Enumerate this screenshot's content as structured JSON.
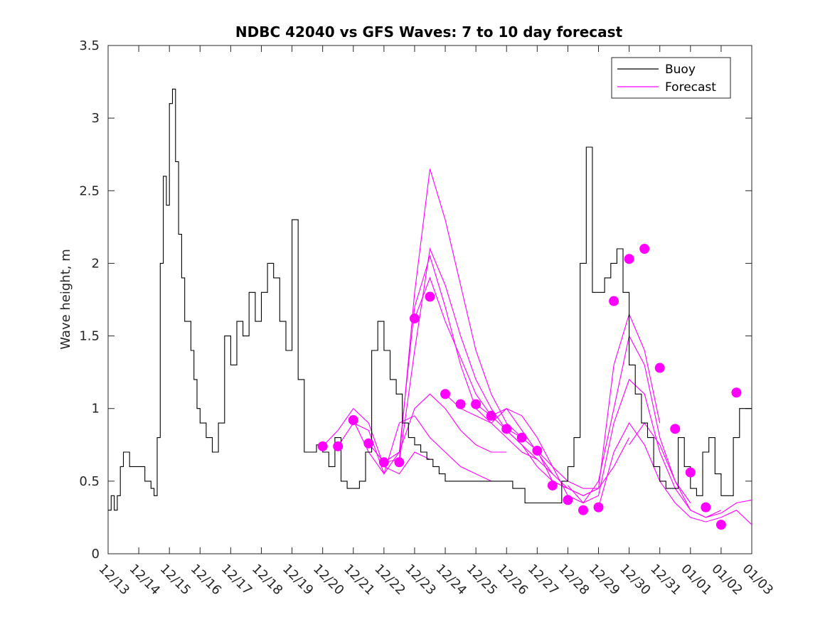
{
  "chart_data": {
    "type": "line",
    "title": "NDBC 42040 vs GFS Waves: 7 to 10 day forecast",
    "xlabel": "",
    "ylabel": "Wave height, m",
    "xlim": [
      0,
      21
    ],
    "ylim": [
      0,
      3.5
    ],
    "yticks": [
      0,
      0.5,
      1,
      1.5,
      2,
      2.5,
      3,
      3.5
    ],
    "ytick_labels": [
      "0",
      "0.5",
      "1",
      "1.5",
      "2",
      "2.5",
      "3",
      "3.5"
    ],
    "xtick_labels": [
      "12/13",
      "12/14",
      "12/15",
      "12/16",
      "12/17",
      "12/18",
      "12/19",
      "12/20",
      "12/21",
      "12/22",
      "12/23",
      "12/24",
      "12/25",
      "12/26",
      "12/27",
      "12/28",
      "12/29",
      "12/30",
      "12/31",
      "01/01",
      "01/02",
      "01/03"
    ],
    "colors": {
      "buoy": "#000000",
      "forecast": "#ff00ff"
    },
    "legend": {
      "position": "top-right",
      "entries": [
        {
          "label": "Buoy",
          "color": "#000000"
        },
        {
          "label": "Forecast",
          "color": "#ff00ff"
        }
      ]
    },
    "buoy": {
      "name": "Buoy",
      "x": [
        0,
        0.1,
        0.2,
        0.3,
        0.4,
        0.5,
        0.6,
        0.7,
        0.8,
        0.9,
        1.0,
        1.2,
        1.4,
        1.5,
        1.6,
        1.7,
        1.8,
        1.9,
        2.0,
        2.1,
        2.2,
        2.3,
        2.4,
        2.5,
        2.6,
        2.7,
        2.8,
        2.9,
        3.0,
        3.2,
        3.4,
        3.6,
        3.8,
        4.0,
        4.2,
        4.4,
        4.6,
        4.8,
        5.0,
        5.2,
        5.4,
        5.6,
        5.8,
        6.0,
        6.2,
        6.4,
        6.6,
        6.8,
        7.0,
        7.2,
        7.4,
        7.6,
        7.8,
        8.0,
        8.2,
        8.4,
        8.6,
        8.8,
        9.0,
        9.2,
        9.4,
        9.6,
        9.8,
        10.0,
        10.2,
        10.4,
        10.6,
        10.8,
        11.0,
        11.2,
        11.4,
        11.6,
        11.8,
        12.0,
        12.4,
        12.8,
        13.2,
        13.6,
        14.0,
        14.4,
        14.8,
        15.0,
        15.2,
        15.4,
        15.6,
        15.8,
        16.0,
        16.2,
        16.4,
        16.6,
        16.8,
        17.0,
        17.2,
        17.4,
        17.6,
        17.8,
        18.0,
        18.2,
        18.4,
        18.6,
        18.8,
        19.0,
        19.2,
        19.4,
        19.6,
        19.8,
        20.0,
        20.2,
        20.4,
        20.6,
        20.8,
        21.0
      ],
      "y": [
        0.3,
        0.4,
        0.3,
        0.4,
        0.6,
        0.7,
        0.7,
        0.6,
        0.6,
        0.6,
        0.6,
        0.5,
        0.45,
        0.4,
        0.8,
        2.0,
        2.6,
        2.4,
        3.1,
        3.2,
        2.7,
        2.2,
        1.9,
        1.6,
        1.6,
        1.4,
        1.2,
        1.0,
        0.9,
        0.8,
        0.7,
        0.9,
        1.5,
        1.3,
        1.6,
        1.5,
        1.8,
        1.6,
        1.8,
        2.0,
        1.9,
        1.6,
        1.4,
        2.3,
        1.2,
        0.7,
        0.7,
        0.75,
        0.7,
        0.6,
        0.8,
        0.5,
        0.45,
        0.45,
        0.5,
        0.7,
        1.4,
        1.6,
        1.4,
        1.2,
        1.1,
        0.9,
        0.8,
        0.75,
        0.7,
        0.65,
        0.6,
        0.55,
        0.5,
        0.5,
        0.5,
        0.5,
        0.5,
        0.5,
        0.5,
        0.5,
        0.45,
        0.35,
        0.35,
        0.35,
        0.5,
        0.6,
        0.8,
        2.0,
        2.8,
        1.8,
        1.8,
        1.9,
        2.0,
        2.1,
        1.8,
        1.3,
        1.1,
        0.9,
        0.8,
        0.6,
        0.5,
        0.45,
        0.45,
        0.8,
        0.6,
        0.45,
        0.4,
        0.7,
        0.8,
        0.55,
        0.4,
        0.4,
        0.8,
        1.0,
        1.0,
        1.0
      ]
    },
    "forecast_markers": {
      "name": "Forecast",
      "x": [
        7.0,
        7.5,
        8.0,
        8.5,
        9.0,
        9.5,
        10.0,
        10.5,
        11.0,
        11.5,
        12.0,
        12.5,
        13.0,
        13.5,
        14.0,
        14.5,
        15.0,
        15.5,
        16.0,
        16.5,
        17.0,
        17.5,
        18.0,
        18.5,
        19.0,
        19.5,
        20.0,
        20.5
      ],
      "y": [
        0.74,
        0.74,
        0.92,
        0.76,
        0.63,
        0.63,
        1.62,
        1.77,
        1.1,
        1.03,
        1.03,
        0.95,
        0.86,
        0.8,
        0.71,
        0.47,
        0.37,
        0.3,
        0.32,
        1.74,
        2.03,
        2.1,
        1.28,
        0.86,
        0.56,
        0.32,
        0.2,
        1.11
      ]
    },
    "forecast_series": [
      {
        "name": "Forecast 1",
        "x": [
          7.0,
          7.5,
          8.0,
          8.5,
          9.0,
          9.5,
          10.0,
          10.5
        ],
        "y": [
          0.74,
          0.85,
          1.0,
          0.9,
          0.6,
          0.55,
          0.7,
          0.65
        ]
      },
      {
        "name": "Forecast 2",
        "x": [
          7.5,
          8.0,
          8.5,
          9.0,
          9.5,
          10.0,
          10.5,
          11.0,
          11.5,
          12.0,
          12.5
        ],
        "y": [
          0.74,
          0.9,
          0.85,
          0.55,
          0.9,
          0.95,
          0.8,
          0.7,
          0.6,
          0.55,
          0.5
        ]
      },
      {
        "name": "Forecast 3",
        "x": [
          8.0,
          8.5,
          9.0,
          9.5,
          10.0,
          10.5,
          11.0,
          11.5,
          12.0,
          12.5,
          13.0
        ],
        "y": [
          0.92,
          0.7,
          0.55,
          0.7,
          1.0,
          1.1,
          1.0,
          0.85,
          0.75,
          0.7,
          0.7
        ]
      },
      {
        "name": "Forecast 4",
        "x": [
          8.5,
          9.0,
          9.5,
          10.0,
          10.5,
          11.0,
          11.5,
          12.0,
          12.5,
          13.0,
          13.5
        ],
        "y": [
          0.76,
          0.63,
          0.65,
          1.8,
          2.65,
          2.3,
          1.85,
          1.4,
          1.1,
          0.9,
          0.8
        ]
      },
      {
        "name": "Forecast 5",
        "x": [
          9.0,
          9.5,
          10.0,
          10.5,
          11.0,
          11.5,
          12.0,
          12.5,
          13.0,
          13.5,
          14.0
        ],
        "y": [
          0.63,
          0.7,
          1.7,
          2.05,
          1.7,
          1.3,
          1.0,
          0.9,
          0.8,
          0.7,
          0.65
        ]
      },
      {
        "name": "Forecast 6",
        "x": [
          9.5,
          10.0,
          10.5,
          11.0,
          11.5,
          12.0,
          12.5,
          13.0,
          13.5,
          14.0,
          14.5
        ],
        "y": [
          0.63,
          1.4,
          2.1,
          1.85,
          1.5,
          1.2,
          1.0,
          0.85,
          0.75,
          0.65,
          0.55
        ]
      },
      {
        "name": "Forecast 7",
        "x": [
          10.0,
          10.5,
          11.0,
          11.5,
          12.0,
          12.5,
          13.0,
          13.5,
          14.0,
          14.5,
          15.0
        ],
        "y": [
          1.62,
          1.9,
          1.6,
          1.35,
          1.1,
          0.95,
          0.85,
          0.75,
          0.6,
          0.5,
          0.45
        ]
      },
      {
        "name": "Forecast 8",
        "x": [
          11.0,
          11.5,
          12.0,
          12.5,
          13.0,
          13.5,
          14.0,
          14.5,
          15.0,
          15.5,
          16.0
        ],
        "y": [
          1.1,
          1.0,
          0.95,
          0.9,
          1.0,
          0.85,
          0.7,
          0.55,
          0.45,
          0.4,
          0.45
        ]
      },
      {
        "name": "Forecast 9",
        "x": [
          12.0,
          12.5,
          13.0,
          13.5,
          14.0,
          14.5,
          15.0,
          15.5,
          16.0,
          16.5,
          17.0
        ],
        "y": [
          1.03,
          0.95,
          1.0,
          0.95,
          0.8,
          0.6,
          0.5,
          0.45,
          0.45,
          0.6,
          0.8
        ]
      },
      {
        "name": "Forecast 10",
        "x": [
          13.0,
          13.5,
          14.0,
          14.5,
          15.0,
          15.5,
          16.0,
          16.5,
          17.0,
          17.5,
          18.0
        ],
        "y": [
          0.86,
          0.8,
          0.71,
          0.5,
          0.45,
          0.4,
          0.45,
          1.3,
          1.65,
          1.4,
          0.9
        ]
      },
      {
        "name": "Forecast 11",
        "x": [
          14.0,
          14.5,
          15.0,
          15.5,
          16.0,
          16.5,
          17.0,
          17.5,
          18.0,
          18.5,
          19.0
        ],
        "y": [
          0.71,
          0.6,
          0.4,
          0.35,
          0.5,
          1.0,
          1.5,
          1.3,
          0.8,
          0.5,
          0.35
        ]
      },
      {
        "name": "Forecast 12",
        "x": [
          15.0,
          15.5,
          16.0,
          16.5,
          17.0,
          17.5,
          18.0,
          18.5,
          19.0,
          19.5,
          20.0
        ],
        "y": [
          0.47,
          0.35,
          0.4,
          0.9,
          1.2,
          1.1,
          0.7,
          0.45,
          0.3,
          0.25,
          0.3
        ]
      },
      {
        "name": "Forecast 13",
        "x": [
          16.0,
          16.5,
          17.0,
          17.5,
          18.0,
          18.5,
          19.0,
          19.5,
          20.0,
          20.5,
          21.0
        ],
        "y": [
          0.32,
          0.7,
          0.9,
          0.75,
          0.5,
          0.35,
          0.25,
          0.22,
          0.25,
          0.3,
          0.2
        ]
      },
      {
        "name": "Forecast 14",
        "x": [
          17.0,
          17.5,
          18.0,
          18.5,
          19.0,
          19.5,
          20.0,
          20.5,
          21.0
        ],
        "y": [
          0.75,
          0.9,
          0.75,
          0.5,
          0.3,
          0.25,
          0.28,
          0.35,
          0.37
        ]
      }
    ]
  }
}
